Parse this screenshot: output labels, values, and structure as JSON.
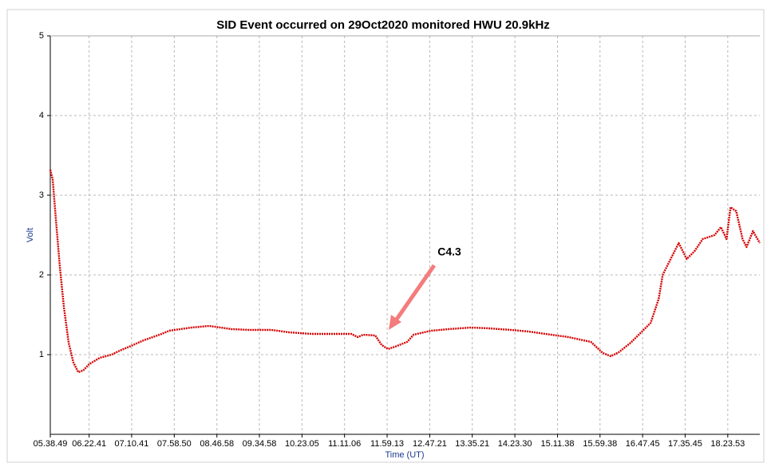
{
  "chart_data": {
    "type": "line",
    "title": "SID Event occurred on 29Oct2020 monitored HWU 20.9kHz",
    "x_label": "Time (UT)",
    "y_label": "Volt",
    "annotation": "C4.3",
    "grid": true,
    "xlim": [
      "05.38.49",
      "19.00.05"
    ],
    "ylim": [
      0,
      5
    ],
    "yticks": [
      1,
      2,
      3,
      4,
      5
    ],
    "xticks": [
      "05.38.49",
      "06.22.41",
      "07.10.41",
      "07.58.50",
      "08.46.58",
      "09.34.58",
      "10.23.05",
      "11.11.06",
      "11.59.13",
      "12.47.21",
      "13.35.21",
      "14.23.30",
      "15.11.38",
      "15.59.38",
      "16.47.45",
      "17.35.45",
      "18.23.53"
    ],
    "x": [
      "05.38.49",
      "05.41.31",
      "05.45.07",
      "05.49.37",
      "05.54.07",
      "05.59.31",
      "06.04.55",
      "06.10.25",
      "06.15.49",
      "06.22.41",
      "06.34.43",
      "06.48.13",
      "06.57.13",
      "07.08.07",
      "07.24.19",
      "07.42.19",
      "07.53.13",
      "08.18.25",
      "08.38.13",
      "09.03.31",
      "09.23.19",
      "09.48.37",
      "10.08.25",
      "10.33.43",
      "10.53.31",
      "11.18.43",
      "11.26.01",
      "11.32.19",
      "11.45.49",
      "11.53.01",
      "12.00.13",
      "12.08.19",
      "12.21.55",
      "12.29.07",
      "12.48.55",
      "13.08.43",
      "13.34.01",
      "13.53.49",
      "14.19.07",
      "14.38.55",
      "15.04.13",
      "15.24.01",
      "15.49.19",
      "16.02.49",
      "16.11.49",
      "16.20.49",
      "16.34.19",
      "16.47.55",
      "16.56.55",
      "17.05.55",
      "17.10.25",
      "17.19.25",
      "17.28.31",
      "17.37.31",
      "17.46.31",
      "17.55.31",
      "18.09.01",
      "18.16.13",
      "18.22.31",
      "18.27.01",
      "18.33.25",
      "18.40.37",
      "18.45.07",
      "18.52.19",
      "19.00.05"
    ],
    "series": [
      {
        "color": "#d40000",
        "values": [
          3.32,
          3.2,
          2.7,
          2.1,
          1.6,
          1.15,
          0.9,
          0.78,
          0.8,
          0.88,
          0.96,
          1.0,
          1.05,
          1.1,
          1.18,
          1.25,
          1.3,
          1.34,
          1.36,
          1.32,
          1.31,
          1.31,
          1.28,
          1.26,
          1.26,
          1.26,
          1.22,
          1.25,
          1.24,
          1.12,
          1.07,
          1.1,
          1.16,
          1.25,
          1.3,
          1.32,
          1.34,
          1.33,
          1.31,
          1.29,
          1.25,
          1.22,
          1.16,
          1.02,
          0.98,
          1.03,
          1.15,
          1.3,
          1.4,
          1.7,
          2.0,
          2.2,
          2.4,
          2.2,
          2.3,
          2.45,
          2.5,
          2.6,
          2.45,
          2.85,
          2.8,
          2.45,
          2.35,
          2.55,
          2.4
        ]
      }
    ]
  }
}
